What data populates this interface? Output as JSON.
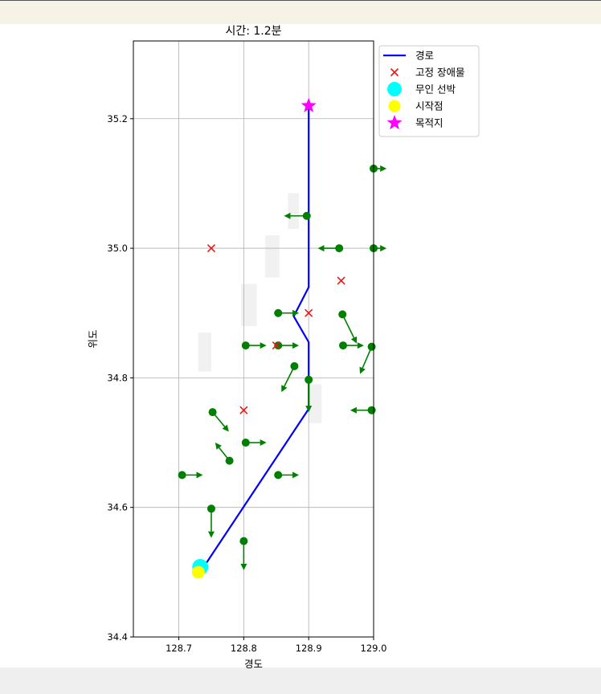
{
  "chart_data": {
    "type": "scatter",
    "title": "시간: 1.2분",
    "xlabel": "경도",
    "ylabel": "위도",
    "xlim": [
      128.63,
      129.0
    ],
    "ylim": [
      34.4,
      35.32
    ],
    "xticks": [
      128.7,
      128.8,
      128.9,
      129.0
    ],
    "yticks": [
      34.4,
      34.6,
      34.8,
      35.0,
      35.2
    ],
    "xtick_labels": [
      "128.7",
      "128.8",
      "128.9",
      "129.0"
    ],
    "ytick_labels": [
      "34.4",
      "34.6",
      "34.8",
      "35.0",
      "35.2"
    ],
    "grid": true,
    "legend_position": "outside-top-right",
    "legend": [
      "경로",
      "고정 장애물",
      "무인 선박",
      "시작점",
      "목적지"
    ],
    "colors": {
      "path": "#0000ff",
      "obstacle": "#e41a1c",
      "vessel": "#00ffff",
      "start": "#ffff00",
      "goal": "#ff00ff",
      "moving": "#008000",
      "land": "#e8e8e8"
    },
    "path": [
      [
        128.733,
        34.5
      ],
      [
        128.9,
        34.752
      ],
      [
        128.9,
        34.855
      ],
      [
        128.877,
        34.895
      ],
      [
        128.9,
        34.94
      ],
      [
        128.9,
        35.22
      ]
    ],
    "obstacles": [
      [
        128.75,
        35.0
      ],
      [
        128.95,
        34.95
      ],
      [
        128.9,
        34.9
      ],
      [
        128.85,
        34.85
      ],
      [
        128.8,
        34.75
      ]
    ],
    "vessel": [
      128.733,
      34.508
    ],
    "start": [
      128.73,
      34.5
    ],
    "goal": [
      128.9,
      35.22
    ],
    "moving_obstacles": [
      {
        "pos": [
          128.897,
          35.05
        ],
        "vel": [
          -0.035,
          0.0
        ]
      },
      {
        "pos": [
          128.947,
          35.0
        ],
        "vel": [
          -0.033,
          0.0
        ]
      },
      {
        "pos": [
          129.0,
          35.0
        ],
        "vel": [
          0.02,
          0.0
        ]
      },
      {
        "pos": [
          129.0,
          35.123
        ],
        "vel": [
          0.02,
          0.0
        ]
      },
      {
        "pos": [
          128.853,
          34.9
        ],
        "vel": [
          0.032,
          0.0
        ]
      },
      {
        "pos": [
          128.952,
          34.898
        ],
        "vel": [
          0.022,
          -0.045
        ]
      },
      {
        "pos": [
          128.803,
          34.85
        ],
        "vel": [
          0.032,
          0.0
        ]
      },
      {
        "pos": [
          128.853,
          34.85
        ],
        "vel": [
          0.032,
          0.0
        ]
      },
      {
        "pos": [
          128.953,
          34.85
        ],
        "vel": [
          0.032,
          0.0
        ]
      },
      {
        "pos": [
          128.997,
          34.848
        ],
        "vel": [
          -0.018,
          -0.042
        ]
      },
      {
        "pos": [
          128.878,
          34.818
        ],
        "vel": [
          -0.02,
          -0.04
        ]
      },
      {
        "pos": [
          128.9,
          34.797
        ],
        "vel": [
          0.0,
          -0.05
        ]
      },
      {
        "pos": [
          128.997,
          34.75
        ],
        "vel": [
          -0.033,
          0.0
        ]
      },
      {
        "pos": [
          128.752,
          34.747
        ],
        "vel": [
          0.025,
          -0.03
        ]
      },
      {
        "pos": [
          128.803,
          34.7
        ],
        "vel": [
          0.032,
          0.0
        ]
      },
      {
        "pos": [
          128.778,
          34.672
        ],
        "vel": [
          -0.022,
          0.028
        ]
      },
      {
        "pos": [
          128.705,
          34.65
        ],
        "vel": [
          0.032,
          0.0
        ]
      },
      {
        "pos": [
          128.853,
          34.65
        ],
        "vel": [
          0.032,
          0.0
        ]
      },
      {
        "pos": [
          128.75,
          34.598
        ],
        "vel": [
          0.0,
          -0.045
        ]
      },
      {
        "pos": [
          128.8,
          34.548
        ],
        "vel": [
          0.0,
          -0.045
        ]
      }
    ],
    "land_patches": [
      {
        "lon": [
          128.868,
          128.885
        ],
        "lat": [
          35.03,
          35.085
        ]
      },
      {
        "lon": [
          128.833,
          128.855
        ],
        "lat": [
          34.955,
          35.02
        ]
      },
      {
        "lon": [
          128.796,
          128.82
        ],
        "lat": [
          34.88,
          34.945
        ]
      },
      {
        "lon": [
          128.73,
          128.75
        ],
        "lat": [
          34.81,
          34.87
        ]
      },
      {
        "lon": [
          128.9,
          128.92
        ],
        "lat": [
          34.73,
          34.79
        ]
      }
    ]
  }
}
